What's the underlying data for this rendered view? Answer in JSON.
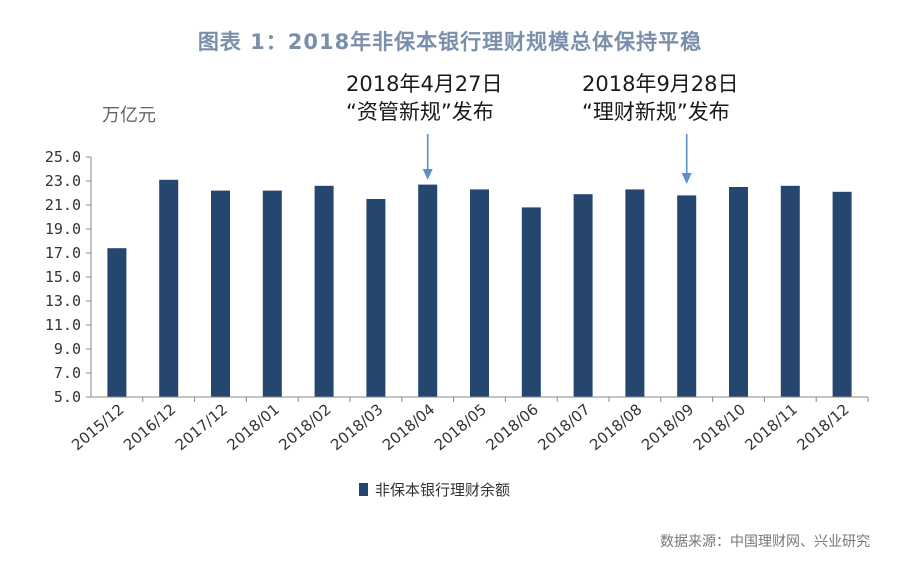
{
  "chart_data": {
    "type": "bar",
    "title": "图表 1：2018年非保本银行理财规模总体保持平稳",
    "ylabel": "万亿元",
    "ylim": [
      5.0,
      25.0
    ],
    "yticks": [
      "5.0",
      "7.0",
      "9.0",
      "11.0",
      "13.0",
      "15.0",
      "17.0",
      "19.0",
      "21.0",
      "23.0",
      "25.0"
    ],
    "categories": [
      "2015/12",
      "2016/12",
      "2017/12",
      "2018/01",
      "2018/02",
      "2018/03",
      "2018/04",
      "2018/05",
      "2018/06",
      "2018/07",
      "2018/08",
      "2018/09",
      "2018/10",
      "2018/11",
      "2018/12"
    ],
    "series": [
      {
        "name": "非保本银行理财余额",
        "values": [
          17.4,
          23.1,
          22.2,
          22.2,
          22.6,
          21.5,
          22.7,
          22.3,
          20.8,
          21.9,
          22.3,
          21.8,
          22.5,
          22.6,
          22.1
        ]
      }
    ],
    "annotations": [
      {
        "line1": "2018年4月27日",
        "line2": "“资管新规”发布",
        "category": "2018/04"
      },
      {
        "line1": "2018年9月28日",
        "line2": "“理财新规”发布",
        "category": "2018/09"
      }
    ],
    "legend_position": "bottom",
    "grid": false,
    "bar_color": "#24466f",
    "source": "数据来源：中国理财网、兴业研究"
  }
}
